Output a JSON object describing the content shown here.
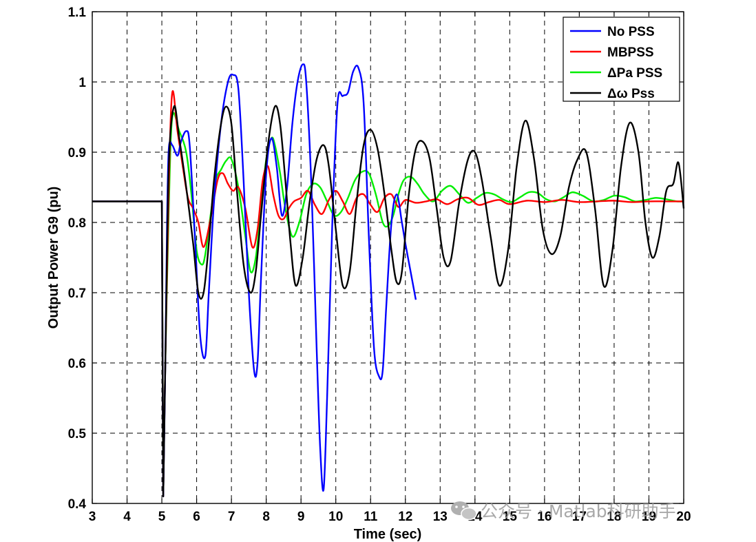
{
  "chart_data": {
    "type": "line",
    "title": "",
    "xlabel": "Time (sec)",
    "ylabel": "Output Power G9 (pu)",
    "xlim": [
      3,
      20
    ],
    "ylim": [
      0.4,
      1.1
    ],
    "grid": true,
    "legend_position": "top-right",
    "xticks": [
      "3",
      "4",
      "5",
      "6",
      "7",
      "8",
      "9",
      "10",
      "11",
      "12",
      "13",
      "14",
      "15",
      "16",
      "17",
      "18",
      "19",
      "20"
    ],
    "yticks": [
      "0.4",
      "0.5",
      "0.6",
      "0.7",
      "0.8",
      "0.9",
      "1",
      "1.1"
    ],
    "series": [
      {
        "name": "No PSS",
        "color": "#0000ff",
        "x": [
          3,
          5,
          5.04,
          5.1,
          5.15,
          5.2,
          5.3,
          5.45,
          5.55,
          5.7,
          5.8,
          5.95,
          6.1,
          6.25,
          6.35,
          6.5,
          6.7,
          6.9,
          7.05,
          7.2,
          7.35,
          7.5,
          7.65,
          7.75,
          7.85,
          8.0,
          8.15,
          8.3,
          8.45,
          8.6,
          8.75,
          8.9,
          9.05,
          9.15,
          9.3,
          9.45,
          9.55,
          9.65,
          9.75,
          9.9,
          10.05,
          10.2,
          10.35,
          10.5,
          10.65,
          10.8,
          10.95,
          11.1,
          11.25,
          11.35,
          11.45,
          11.6,
          11.75,
          11.9,
          12.0,
          12.15,
          12.3
        ],
        "y": [
          0.83,
          0.83,
          0.41,
          0.6,
          0.8,
          0.905,
          0.91,
          0.895,
          0.915,
          0.93,
          0.91,
          0.78,
          0.64,
          0.61,
          0.7,
          0.83,
          0.94,
          1.0,
          1.01,
          0.99,
          0.86,
          0.7,
          0.59,
          0.6,
          0.72,
          0.87,
          0.92,
          0.88,
          0.81,
          0.85,
          0.94,
          1.0,
          1.025,
          1.0,
          0.85,
          0.62,
          0.48,
          0.42,
          0.55,
          0.8,
          0.97,
          0.98,
          0.985,
          1.015,
          1.02,
          0.97,
          0.78,
          0.62,
          0.58,
          0.59,
          0.68,
          0.8,
          0.84,
          0.8,
          0.77,
          0.73,
          0.69
        ]
      },
      {
        "name": "MBPSS",
        "color": "#ff0000",
        "x": [
          3,
          5,
          5.04,
          5.1,
          5.2,
          5.3,
          5.45,
          5.6,
          5.75,
          5.9,
          6.05,
          6.2,
          6.4,
          6.6,
          6.75,
          6.9,
          7.05,
          7.2,
          7.4,
          7.6,
          7.75,
          7.9,
          8.05,
          8.2,
          8.35,
          8.5,
          8.65,
          8.8,
          9.0,
          9.2,
          9.4,
          9.6,
          9.8,
          10.0,
          10.2,
          10.4,
          10.6,
          10.8,
          11.0,
          11.2,
          11.4,
          11.6,
          11.8,
          12.0,
          12.3,
          12.6,
          12.9,
          13.2,
          13.5,
          13.8,
          14.1,
          14.4,
          14.7,
          15.0,
          15.5,
          16.0,
          16.5,
          17.0,
          17.5,
          18.0,
          18.5,
          19.0,
          19.5,
          20.0
        ],
        "y": [
          0.83,
          0.83,
          0.41,
          0.6,
          0.85,
          0.985,
          0.93,
          0.88,
          0.835,
          0.82,
          0.8,
          0.765,
          0.805,
          0.86,
          0.87,
          0.855,
          0.845,
          0.85,
          0.82,
          0.765,
          0.79,
          0.86,
          0.88,
          0.84,
          0.81,
          0.805,
          0.82,
          0.83,
          0.835,
          0.845,
          0.825,
          0.812,
          0.832,
          0.845,
          0.83,
          0.812,
          0.835,
          0.84,
          0.825,
          0.815,
          0.835,
          0.84,
          0.822,
          0.832,
          0.828,
          0.83,
          0.833,
          0.826,
          0.833,
          0.835,
          0.825,
          0.829,
          0.832,
          0.826,
          0.831,
          0.829,
          0.832,
          0.829,
          0.83,
          0.831,
          0.829,
          0.83,
          0.83,
          0.83
        ]
      },
      {
        "name": "ΔPa PSS",
        "color": "#00ee00",
        "x": [
          3,
          5,
          5.04,
          5.1,
          5.2,
          5.3,
          5.5,
          5.7,
          5.85,
          6.0,
          6.15,
          6.25,
          6.4,
          6.55,
          6.7,
          6.85,
          7.0,
          7.2,
          7.4,
          7.55,
          7.7,
          7.85,
          8.0,
          8.15,
          8.25,
          8.4,
          8.55,
          8.75,
          8.95,
          9.15,
          9.35,
          9.55,
          9.75,
          9.95,
          10.15,
          10.35,
          10.55,
          10.75,
          10.95,
          11.15,
          11.35,
          11.5,
          11.65,
          11.8,
          11.95,
          12.15,
          12.35,
          12.55,
          12.8,
          13.05,
          13.3,
          13.55,
          13.8,
          14.05,
          14.3,
          14.55,
          14.8,
          15.05,
          15.3,
          15.55,
          15.8,
          16.05,
          16.3,
          16.55,
          16.8,
          17.1,
          17.4,
          17.7,
          18.0,
          18.3,
          18.6,
          18.9,
          19.2,
          19.5,
          19.8,
          20.0
        ],
        "y": [
          0.83,
          0.83,
          0.41,
          0.6,
          0.82,
          0.95,
          0.93,
          0.9,
          0.84,
          0.76,
          0.74,
          0.755,
          0.81,
          0.86,
          0.875,
          0.888,
          0.89,
          0.85,
          0.78,
          0.73,
          0.75,
          0.82,
          0.89,
          0.92,
          0.91,
          0.87,
          0.82,
          0.78,
          0.8,
          0.84,
          0.855,
          0.85,
          0.83,
          0.81,
          0.815,
          0.835,
          0.86,
          0.872,
          0.87,
          0.84,
          0.8,
          0.795,
          0.81,
          0.84,
          0.86,
          0.865,
          0.855,
          0.84,
          0.83,
          0.845,
          0.852,
          0.84,
          0.828,
          0.835,
          0.842,
          0.84,
          0.833,
          0.829,
          0.836,
          0.843,
          0.842,
          0.833,
          0.83,
          0.836,
          0.843,
          0.838,
          0.83,
          0.832,
          0.838,
          0.836,
          0.83,
          0.832,
          0.835,
          0.833,
          0.83,
          0.83
        ]
      },
      {
        "name": "Δω Pss",
        "color": "#000000",
        "x": [
          3,
          5,
          5.04,
          5.1,
          5.2,
          5.35,
          5.5,
          5.7,
          5.9,
          6.05,
          6.2,
          6.35,
          6.5,
          6.7,
          6.85,
          7.0,
          7.15,
          7.35,
          7.55,
          7.7,
          7.85,
          8.05,
          8.25,
          8.4,
          8.55,
          8.7,
          8.85,
          9.05,
          9.25,
          9.45,
          9.65,
          9.8,
          10.0,
          10.2,
          10.4,
          10.6,
          10.8,
          11.0,
          11.2,
          11.4,
          11.6,
          11.75,
          11.9,
          12.1,
          12.3,
          12.5,
          12.7,
          12.9,
          13.1,
          13.3,
          13.55,
          13.8,
          14.0,
          14.2,
          14.45,
          14.7,
          14.95,
          15.2,
          15.45,
          15.7,
          15.95,
          16.2,
          16.45,
          16.7,
          16.95,
          17.2,
          17.45,
          17.7,
          17.95,
          18.2,
          18.45,
          18.7,
          18.9,
          19.1,
          19.3,
          19.5,
          19.7,
          19.85,
          20.0
        ],
        "y": [
          0.83,
          0.83,
          0.41,
          0.6,
          0.88,
          0.965,
          0.92,
          0.85,
          0.77,
          0.7,
          0.7,
          0.77,
          0.86,
          0.94,
          0.965,
          0.94,
          0.85,
          0.74,
          0.7,
          0.73,
          0.81,
          0.91,
          0.965,
          0.94,
          0.86,
          0.77,
          0.71,
          0.75,
          0.83,
          0.89,
          0.91,
          0.88,
          0.79,
          0.71,
          0.73,
          0.83,
          0.91,
          0.932,
          0.905,
          0.84,
          0.76,
          0.715,
          0.73,
          0.84,
          0.905,
          0.915,
          0.89,
          0.82,
          0.75,
          0.745,
          0.83,
          0.89,
          0.9,
          0.86,
          0.78,
          0.71,
          0.76,
          0.88,
          0.945,
          0.89,
          0.79,
          0.755,
          0.78,
          0.85,
          0.89,
          0.9,
          0.82,
          0.71,
          0.76,
          0.88,
          0.942,
          0.9,
          0.8,
          0.75,
          0.78,
          0.845,
          0.855,
          0.885,
          0.82
        ]
      }
    ]
  },
  "watermark": {
    "text": "公众号 · Matlab科研助手"
  },
  "icons": {
    "watermark_logo": "wechat-logo-icon"
  }
}
